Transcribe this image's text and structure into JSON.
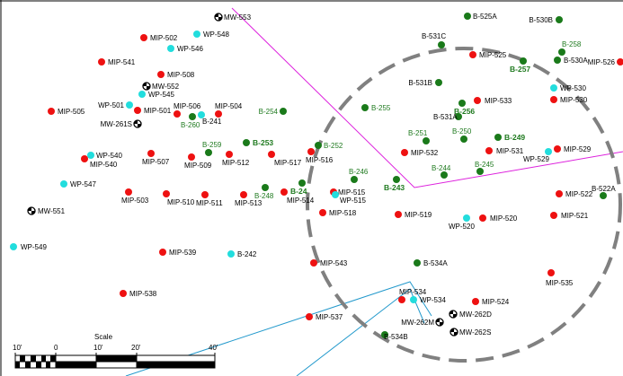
{
  "colors": {
    "mip": "#ee1111",
    "boring": "#1a7a1a",
    "wp": "#22dddd",
    "mw": "#000000",
    "fence": "#dd22dd",
    "water": "#2299cc",
    "circle": "#808080",
    "label_green": "#1f7a1f"
  },
  "scale": {
    "title": "Scale",
    "ticks": [
      "10'",
      "0",
      "10'",
      "20'",
      "40'"
    ]
  },
  "points": [
    {
      "id": "MW-553",
      "type": "mw",
      "style": "n"
    },
    {
      "id": "MIP-502",
      "type": "mip",
      "style": "n"
    },
    {
      "id": "WP-548",
      "type": "wp",
      "style": "n"
    },
    {
      "id": "WP-546",
      "type": "wp",
      "style": "n"
    },
    {
      "id": "MIP-541",
      "type": "mip",
      "style": "n"
    },
    {
      "id": "MIP-508",
      "type": "mip",
      "style": "n"
    },
    {
      "id": "MW-552",
      "type": "mw",
      "style": "n"
    },
    {
      "id": "WP-545",
      "type": "wp",
      "style": "n"
    },
    {
      "id": "WP-501",
      "type": "wp",
      "style": "n"
    },
    {
      "id": "MIP-501",
      "type": "mip",
      "style": "n"
    },
    {
      "id": "MIP-505",
      "type": "mip",
      "style": "n"
    },
    {
      "id": "MIP-506",
      "type": "mip",
      "style": "n"
    },
    {
      "id": "B-260",
      "type": "b",
      "style": "g"
    },
    {
      "id": "B-241",
      "type": "wp",
      "style": "n"
    },
    {
      "id": "MIP-504",
      "type": "mip",
      "style": "n"
    },
    {
      "id": "MW-261S",
      "type": "mw",
      "style": "n"
    },
    {
      "id": "B-254",
      "type": "b",
      "style": "g"
    },
    {
      "id": "WP-540",
      "type": "wp",
      "style": "n"
    },
    {
      "id": "MIP-540",
      "type": "mip",
      "style": "n"
    },
    {
      "id": "MIP-507",
      "type": "mip",
      "style": "n"
    },
    {
      "id": "B-259",
      "type": "b",
      "style": "g"
    },
    {
      "id": "MIP-509",
      "type": "mip",
      "style": "n"
    },
    {
      "id": "MIP-512",
      "type": "mip",
      "style": "n"
    },
    {
      "id": "B-253",
      "type": "b",
      "style": "gb"
    },
    {
      "id": "MIP-517",
      "type": "mip",
      "style": "n"
    },
    {
      "id": "MIP-516",
      "type": "mip",
      "style": "n"
    },
    {
      "id": "B-252",
      "type": "b",
      "style": "g"
    },
    {
      "id": "WP-547",
      "type": "wp",
      "style": "n"
    },
    {
      "id": "MIP-503",
      "type": "mip",
      "style": "n"
    },
    {
      "id": "MIP-510",
      "type": "mip",
      "style": "n"
    },
    {
      "id": "MIP-511",
      "type": "mip",
      "style": "n"
    },
    {
      "id": "MIP-513",
      "type": "mip",
      "style": "n"
    },
    {
      "id": "B-248",
      "type": "b",
      "style": "g"
    },
    {
      "id": "MIP-514",
      "type": "mip",
      "style": "n"
    },
    {
      "id": "B-24",
      "type": "b",
      "style": "gb"
    },
    {
      "id": "MIP-515",
      "type": "mip",
      "style": "n"
    },
    {
      "id": "WP-515",
      "type": "wp",
      "style": "n"
    },
    {
      "id": "MW-551",
      "type": "mw",
      "style": "n"
    },
    {
      "id": "MIP-518",
      "type": "mip",
      "style": "n"
    },
    {
      "id": "B-246",
      "type": "b",
      "style": "g"
    },
    {
      "id": "B-243",
      "type": "b",
      "style": "gb"
    },
    {
      "id": "WP-549",
      "type": "wp",
      "style": "n"
    },
    {
      "id": "MIP-539",
      "type": "mip",
      "style": "n"
    },
    {
      "id": "B-242",
      "type": "wp",
      "style": "n"
    },
    {
      "id": "MIP-543",
      "type": "mip",
      "style": "n"
    },
    {
      "id": "MIP-538",
      "type": "mip",
      "style": "n"
    },
    {
      "id": "MIP-537",
      "type": "mip",
      "style": "n"
    },
    {
      "id": "B-525A",
      "type": "b",
      "style": "n"
    },
    {
      "id": "B-530B",
      "type": "b",
      "style": "n"
    },
    {
      "id": "B-531C",
      "type": "b",
      "style": "n"
    },
    {
      "id": "B-258",
      "type": "b",
      "style": "g"
    },
    {
      "id": "MIP-525",
      "type": "mip",
      "style": "n"
    },
    {
      "id": "B-257",
      "type": "b",
      "style": "gb"
    },
    {
      "id": "B-530A",
      "type": "b",
      "style": "n"
    },
    {
      "id": "MIP-526",
      "type": "mip",
      "style": "n"
    },
    {
      "id": "B-531B",
      "type": "b",
      "style": "n"
    },
    {
      "id": "WP-530",
      "type": "wp",
      "style": "n"
    },
    {
      "id": "MIP-530",
      "type": "mip",
      "style": "n"
    },
    {
      "id": "B-255",
      "type": "b",
      "style": "g"
    },
    {
      "id": "B-256",
      "type": "b",
      "style": "gb"
    },
    {
      "id": "MIP-533",
      "type": "mip",
      "style": "n"
    },
    {
      "id": "B-531A",
      "type": "b",
      "style": "n"
    },
    {
      "id": "B-251",
      "type": "b",
      "style": "g"
    },
    {
      "id": "B-250",
      "type": "b",
      "style": "g"
    },
    {
      "id": "B-249",
      "type": "b",
      "style": "gb"
    },
    {
      "id": "MIP-532",
      "type": "mip",
      "style": "n"
    },
    {
      "id": "MIP-531",
      "type": "mip",
      "style": "n"
    },
    {
      "id": "MIP-529",
      "type": "mip",
      "style": "n"
    },
    {
      "id": "WP-529",
      "type": "wp",
      "style": "n"
    },
    {
      "id": "B-244",
      "type": "b",
      "style": "g"
    },
    {
      "id": "B-245",
      "type": "b",
      "style": "g"
    },
    {
      "id": "MIP-522",
      "type": "mip",
      "style": "n"
    },
    {
      "id": "B-522A",
      "type": "b",
      "style": "n"
    },
    {
      "id": "MIP-519",
      "type": "mip",
      "style": "n"
    },
    {
      "id": "WP-520",
      "type": "wp",
      "style": "n"
    },
    {
      "id": "MIP-520",
      "type": "mip",
      "style": "n"
    },
    {
      "id": "MIP-521",
      "type": "mip",
      "style": "n"
    },
    {
      "id": "B-534A",
      "type": "b",
      "style": "n"
    },
    {
      "id": "MIP-535",
      "type": "mip",
      "style": "n"
    },
    {
      "id": "MIP-534",
      "type": "mip",
      "style": "n"
    },
    {
      "id": "WP-534",
      "type": "wp",
      "style": "n"
    },
    {
      "id": "MIP-524",
      "type": "mip",
      "style": "n"
    },
    {
      "id": "MW-262D",
      "type": "mw",
      "style": "n"
    },
    {
      "id": "MW-262M",
      "type": "mw",
      "style": "n"
    },
    {
      "id": "MW-262S",
      "type": "mw",
      "style": "n"
    },
    {
      "id": "B-534B",
      "type": "b",
      "style": "n"
    }
  ]
}
